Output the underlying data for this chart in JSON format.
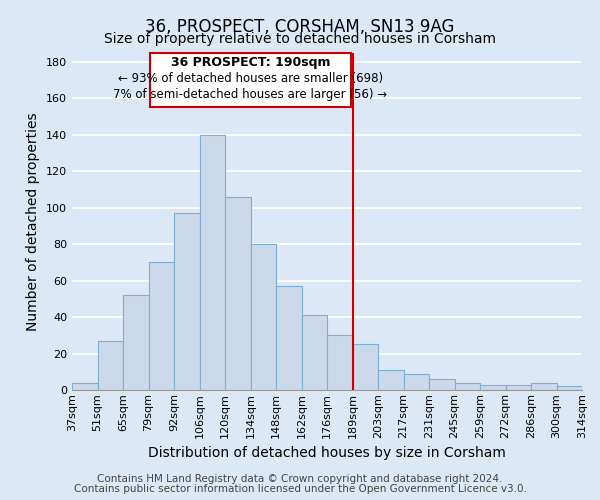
{
  "title": "36, PROSPECT, CORSHAM, SN13 9AG",
  "subtitle": "Size of property relative to detached houses in Corsham",
  "xlabel": "Distribution of detached houses by size in Corsham",
  "ylabel": "Number of detached properties",
  "bar_labels": [
    "37sqm",
    "51sqm",
    "65sqm",
    "79sqm",
    "92sqm",
    "106sqm",
    "120sqm",
    "134sqm",
    "148sqm",
    "162sqm",
    "176sqm",
    "189sqm",
    "203sqm",
    "217sqm",
    "231sqm",
    "245sqm",
    "259sqm",
    "272sqm",
    "286sqm",
    "300sqm",
    "314sqm"
  ],
  "bar_heights": [
    4,
    27,
    52,
    70,
    97,
    140,
    106,
    80,
    57,
    41,
    30,
    25,
    11,
    9,
    6,
    4,
    3,
    3,
    4,
    2
  ],
  "bar_color": "#ccd9ea",
  "bar_edge_color": "#7bafd4",
  "ylim": [
    0,
    185
  ],
  "yticks": [
    0,
    20,
    40,
    60,
    80,
    100,
    120,
    140,
    160,
    180
  ],
  "vline_color": "#cc0000",
  "annotation_title": "36 PROSPECT: 190sqm",
  "annotation_line1": "← 93% of detached houses are smaller (698)",
  "annotation_line2": "7% of semi-detached houses are larger (56) →",
  "annotation_box_color": "#ffffff",
  "annotation_box_edge": "#cc0000",
  "footer1": "Contains HM Land Registry data © Crown copyright and database right 2024.",
  "footer2": "Contains public sector information licensed under the Open Government Licence v3.0.",
  "background_color": "#dce8f5",
  "grid_color": "#ffffff",
  "title_fontsize": 12,
  "subtitle_fontsize": 10,
  "axis_label_fontsize": 10,
  "tick_fontsize": 8,
  "footer_fontsize": 7.5
}
